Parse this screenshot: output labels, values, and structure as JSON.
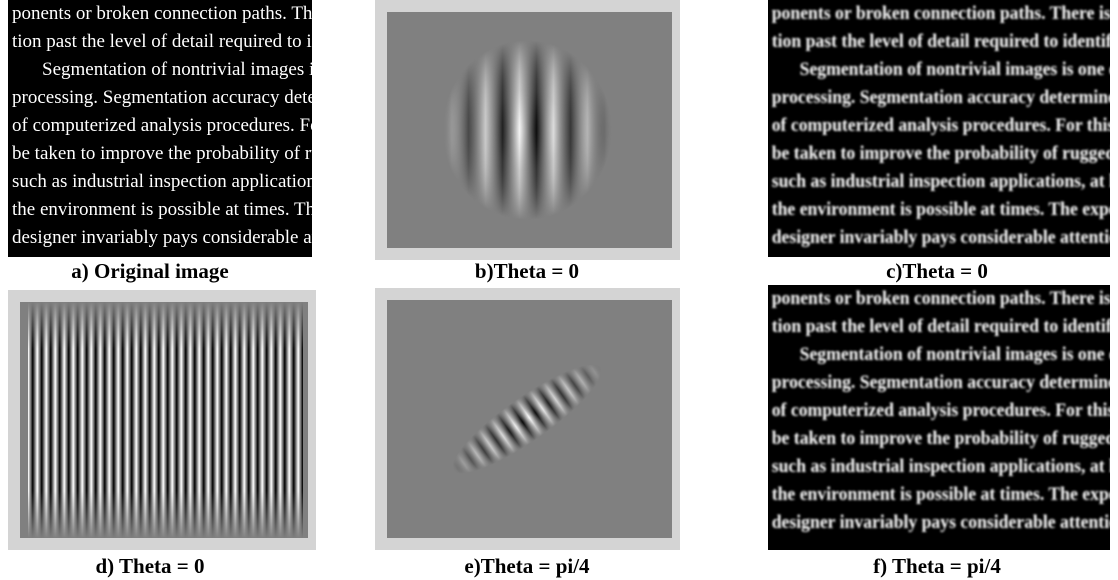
{
  "source_text": {
    "lines": [
      "ponents or broken connection paths. There is no poi",
      "tion past the level of detail required to identify those",
      "Segmentation of nontrivial images is one of the mos",
      "processing. Segmentation accuracy determines the ev",
      "of computerized analysis procedures. For this reason,",
      "be taken to improve the probability of rugged segmenta",
      "such as industrial inspection applications, at least some",
      "the environment is possible at times. The experienced i",
      "designer invariably pays considerable attention to such"
    ]
  },
  "panels": [
    {
      "caption": "a) Original image"
    },
    {
      "caption": "b)Theta = 0"
    },
    {
      "caption": "c)Theta = 0"
    },
    {
      "caption": "d) Theta = 0"
    },
    {
      "caption": "e)Theta = pi/4"
    },
    {
      "caption": "f) Theta = pi/4"
    }
  ]
}
